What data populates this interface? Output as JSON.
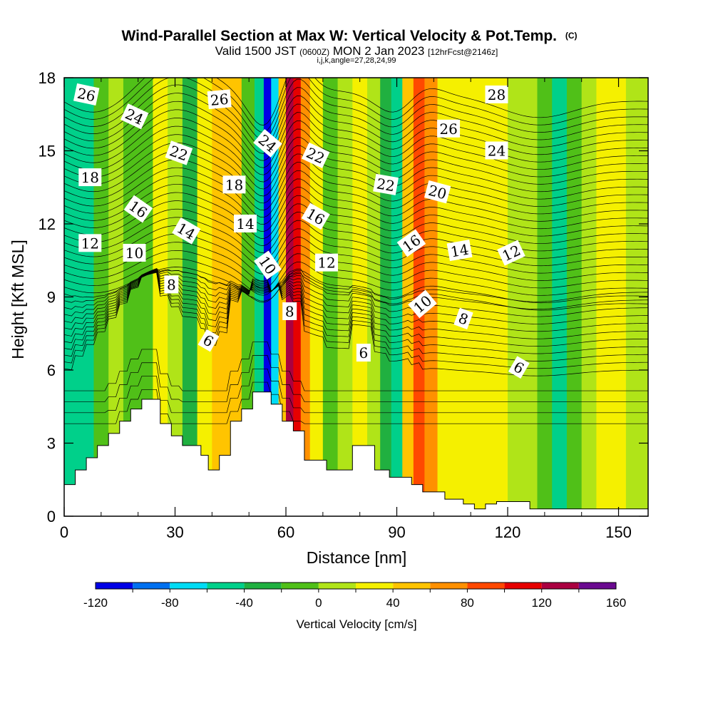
{
  "chart_data": {
    "type": "heatmap",
    "title": "Wind-Parallel Section at Max W: Vertical Velocity & Pot.Temp.",
    "title_mark": "(C)",
    "subtitle": {
      "a": "Valid 1500 JST ",
      "b": "(0600Z)",
      "c": " MON 2 Jan 2023 ",
      "d": "[12hrFcst@2146z]"
    },
    "indices_line": "i,j,k,angle=27,28,24,99",
    "xlabel": "Distance [nm]",
    "ylabel": "Height [Kft MSL]",
    "xlim": [
      0,
      158
    ],
    "ylim": [
      0,
      18
    ],
    "xticks": [
      0,
      30,
      60,
      90,
      120,
      150
    ],
    "yticks": [
      0,
      3,
      6,
      9,
      12,
      15,
      18
    ],
    "colorbar": {
      "label": "Vertical Velocity [cm/s]",
      "bounds": [
        -120,
        -100,
        -80,
        -60,
        -40,
        -20,
        0,
        20,
        40,
        60,
        80,
        100,
        120,
        140,
        160
      ],
      "tick_labels": [
        "-120",
        "-80",
        "-40",
        "0",
        "40",
        "80",
        "120",
        "160"
      ],
      "tick_values": [
        -120,
        -80,
        -40,
        0,
        40,
        80,
        120,
        160
      ],
      "colors": [
        "#0000e6",
        "#0070f0",
        "#00dcf5",
        "#00d08a",
        "#20b040",
        "#50c018",
        "#b0e418",
        "#f5f000",
        "#ffc400",
        "#ff9000",
        "#ff4800",
        "#e60000",
        "#aa0040",
        "#6a0a90"
      ]
    },
    "vertical_velocity_bands": [
      {
        "x": 2,
        "w": -55
      },
      {
        "x": 6,
        "w": -45
      },
      {
        "x": 10,
        "w": -15
      },
      {
        "x": 14,
        "w": 10
      },
      {
        "x": 18,
        "w": -20
      },
      {
        "x": 22,
        "w": -10
      },
      {
        "x": 26,
        "w": 35
      },
      {
        "x": 30,
        "w": 5
      },
      {
        "x": 34,
        "w": -25
      },
      {
        "x": 38,
        "w": 30
      },
      {
        "x": 42,
        "w": 55
      },
      {
        "x": 46,
        "w": 45
      },
      {
        "x": 50,
        "w": -15
      },
      {
        "x": 53,
        "w": -60
      },
      {
        "x": 55,
        "w": -115
      },
      {
        "x": 57,
        "w": -70
      },
      {
        "x": 59,
        "w": 40
      },
      {
        "x": 61,
        "w": 130
      },
      {
        "x": 63,
        "w": 110
      },
      {
        "x": 65,
        "w": 70
      },
      {
        "x": 68,
        "w": 25
      },
      {
        "x": 72,
        "w": -10
      },
      {
        "x": 76,
        "w": 5
      },
      {
        "x": 80,
        "w": 30
      },
      {
        "x": 84,
        "w": 10
      },
      {
        "x": 87,
        "w": -25
      },
      {
        "x": 90,
        "w": -60
      },
      {
        "x": 93,
        "w": 40
      },
      {
        "x": 96,
        "w": 95
      },
      {
        "x": 99,
        "w": 70
      },
      {
        "x": 103,
        "w": 35
      },
      {
        "x": 108,
        "w": 20
      },
      {
        "x": 113,
        "w": 30
      },
      {
        "x": 118,
        "w": 25
      },
      {
        "x": 122,
        "w": 5
      },
      {
        "x": 126,
        "w": 15
      },
      {
        "x": 130,
        "w": -10
      },
      {
        "x": 134,
        "w": -45
      },
      {
        "x": 138,
        "w": -15
      },
      {
        "x": 142,
        "w": 10
      },
      {
        "x": 146,
        "w": 30
      },
      {
        "x": 150,
        "w": 25
      },
      {
        "x": 154,
        "w": 10
      },
      {
        "x": 157,
        "w": 0
      }
    ],
    "terrain": {
      "x": [
        0,
        3,
        3,
        6,
        6,
        9,
        9,
        12,
        12,
        15,
        15,
        18,
        18,
        21,
        21,
        26,
        26,
        29,
        29,
        32,
        32,
        37,
        37,
        39,
        39,
        42,
        42,
        45,
        45,
        48,
        48,
        51,
        51,
        56,
        56,
        59,
        59,
        62,
        62,
        65,
        65,
        71,
        71,
        78,
        78,
        84,
        84,
        88,
        88,
        94,
        94,
        97,
        97,
        103,
        103,
        108,
        108,
        111,
        111,
        114,
        114,
        117,
        117,
        126,
        126,
        132,
        132,
        140,
        140,
        158
      ],
      "y": [
        1.3,
        1.3,
        1.9,
        1.9,
        2.4,
        2.4,
        2.9,
        2.9,
        3.4,
        3.4,
        3.9,
        3.9,
        4.4,
        4.4,
        4.8,
        4.8,
        3.8,
        3.8,
        3.3,
        3.3,
        2.9,
        2.9,
        2.5,
        2.5,
        1.9,
        1.9,
        2.5,
        2.5,
        3.9,
        3.9,
        4.4,
        4.4,
        5.1,
        5.1,
        4.6,
        4.6,
        3.9,
        3.9,
        3.5,
        3.5,
        2.3,
        2.3,
        1.9,
        1.9,
        2.9,
        2.9,
        1.9,
        1.9,
        1.6,
        1.6,
        1.3,
        1.3,
        1.0,
        1.0,
        0.7,
        0.7,
        0.5,
        0.5,
        0.3,
        0.3,
        0.5,
        0.5,
        0.6,
        0.6,
        0.3,
        0.3,
        0.3,
        0.3,
        0.3,
        0.3
      ]
    },
    "potential_temperature_labels": [
      {
        "text": "26",
        "x": 6,
        "y": 17.3,
        "angle": 12
      },
      {
        "text": "24",
        "x": 19,
        "y": 16.4,
        "angle": 25
      },
      {
        "text": "22",
        "x": 31,
        "y": 14.9,
        "angle": 20
      },
      {
        "text": "26",
        "x": 42,
        "y": 17.1,
        "angle": -5
      },
      {
        "text": "18",
        "x": 7,
        "y": 13.9,
        "angle": 0
      },
      {
        "text": "16",
        "x": 20,
        "y": 12.6,
        "angle": 35
      },
      {
        "text": "14",
        "x": 33,
        "y": 11.7,
        "angle": 30
      },
      {
        "text": "18",
        "x": 46,
        "y": 13.6,
        "angle": 0
      },
      {
        "text": "14",
        "x": 49,
        "y": 12.0,
        "angle": 0
      },
      {
        "text": "12",
        "x": 7,
        "y": 11.2,
        "angle": 0
      },
      {
        "text": "10",
        "x": 19,
        "y": 10.8,
        "angle": 0
      },
      {
        "text": "8",
        "x": 29,
        "y": 9.5,
        "angle": 0
      },
      {
        "text": "24",
        "x": 55,
        "y": 15.3,
        "angle": 40
      },
      {
        "text": "22",
        "x": 68,
        "y": 14.8,
        "angle": 25
      },
      {
        "text": "16",
        "x": 68,
        "y": 12.3,
        "angle": 30
      },
      {
        "text": "10",
        "x": 55,
        "y": 10.3,
        "angle": 55
      },
      {
        "text": "12",
        "x": 71,
        "y": 10.4,
        "angle": 0
      },
      {
        "text": "8",
        "x": 61,
        "y": 8.4,
        "angle": 0
      },
      {
        "text": "6",
        "x": 39,
        "y": 7.2,
        "angle": 30
      },
      {
        "text": "22",
        "x": 87,
        "y": 13.6,
        "angle": 10
      },
      {
        "text": "20",
        "x": 101,
        "y": 13.3,
        "angle": 15
      },
      {
        "text": "16",
        "x": 94,
        "y": 11.2,
        "angle": -35
      },
      {
        "text": "10",
        "x": 97,
        "y": 8.7,
        "angle": -40
      },
      {
        "text": "14",
        "x": 107,
        "y": 10.9,
        "angle": -10
      },
      {
        "text": "8",
        "x": 108,
        "y": 8.1,
        "angle": 20
      },
      {
        "text": "6",
        "x": 81,
        "y": 6.7,
        "angle": 0
      },
      {
        "text": "28",
        "x": 117,
        "y": 17.3,
        "angle": 0
      },
      {
        "text": "26",
        "x": 104,
        "y": 15.9,
        "angle": 0
      },
      {
        "text": "24",
        "x": 117,
        "y": 15.0,
        "angle": 0
      },
      {
        "text": "12",
        "x": 121,
        "y": 10.8,
        "angle": -25
      },
      {
        "text": "6",
        "x": 123,
        "y": 6.1,
        "angle": 30
      }
    ]
  }
}
